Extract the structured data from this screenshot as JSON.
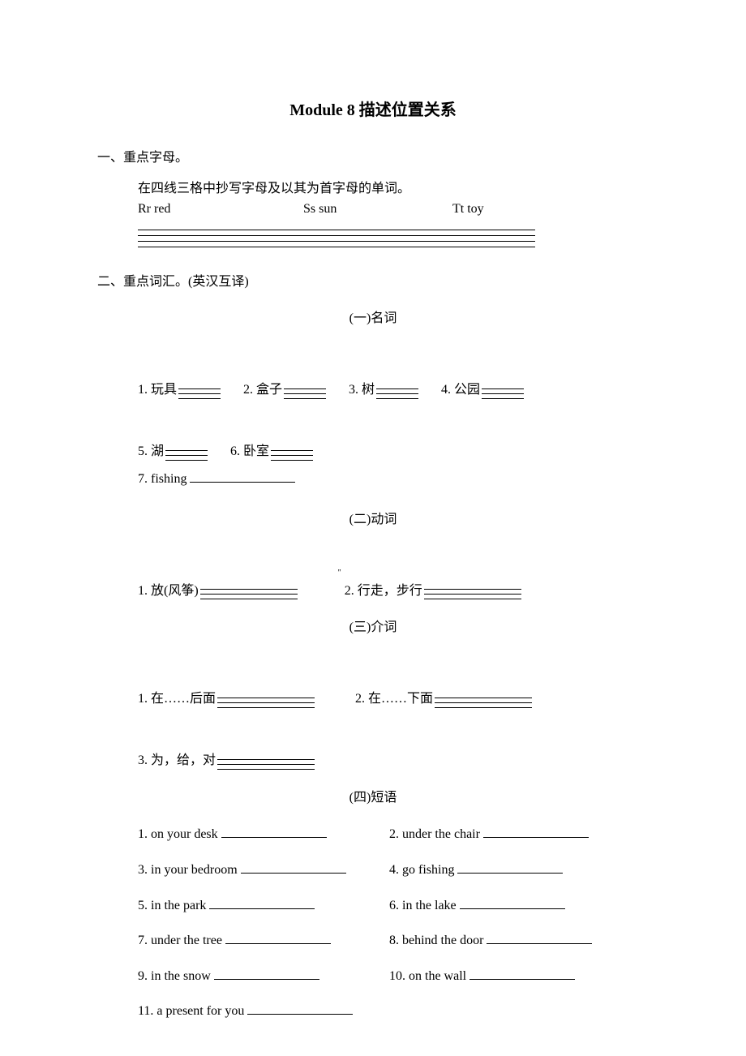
{
  "title": "Module 8  描述位置关系",
  "section1": {
    "header": "一、重点字母。",
    "instruction": "在四线三格中抄写字母及以其为首字母的单词。",
    "letters": {
      "l1": "Rr red",
      "l2": "Ss sun",
      "l3": "Tt toy"
    }
  },
  "section2": {
    "header": "二、重点词汇。(英汉互译)",
    "sub1_title": "(一)名词",
    "nouns": {
      "n1": "1. 玩具",
      "n2": "2. 盒子",
      "n3": "3. 树",
      "n4": "4. 公园",
      "n5": "5. 湖",
      "n6": "6. 卧室",
      "n7_label": "7. fishing"
    },
    "sub2_title": "(二)动词",
    "verbs": {
      "v1": "1. 放(风筝)",
      "v2": "2. 行走，步行"
    },
    "sub3_title": "(三)介词",
    "preps": {
      "p1": "1. 在……后面",
      "p2": "2. 在……下面",
      "p3": "3. 为，给，对"
    },
    "sub4_title": "(四)短语",
    "phrases": {
      "ph1": "1. on your desk",
      "ph2": "2. under the chair",
      "ph3": "3. in your bedroom",
      "ph4": "4. go fishing",
      "ph5": "5. in the park",
      "ph6": "6. in the lake",
      "ph7": "7. under the tree",
      "ph8": "8. behind the door",
      "ph9": "9. in the snow",
      "ph10": "10. on the wall",
      "ph11": "11. a present for you"
    }
  }
}
